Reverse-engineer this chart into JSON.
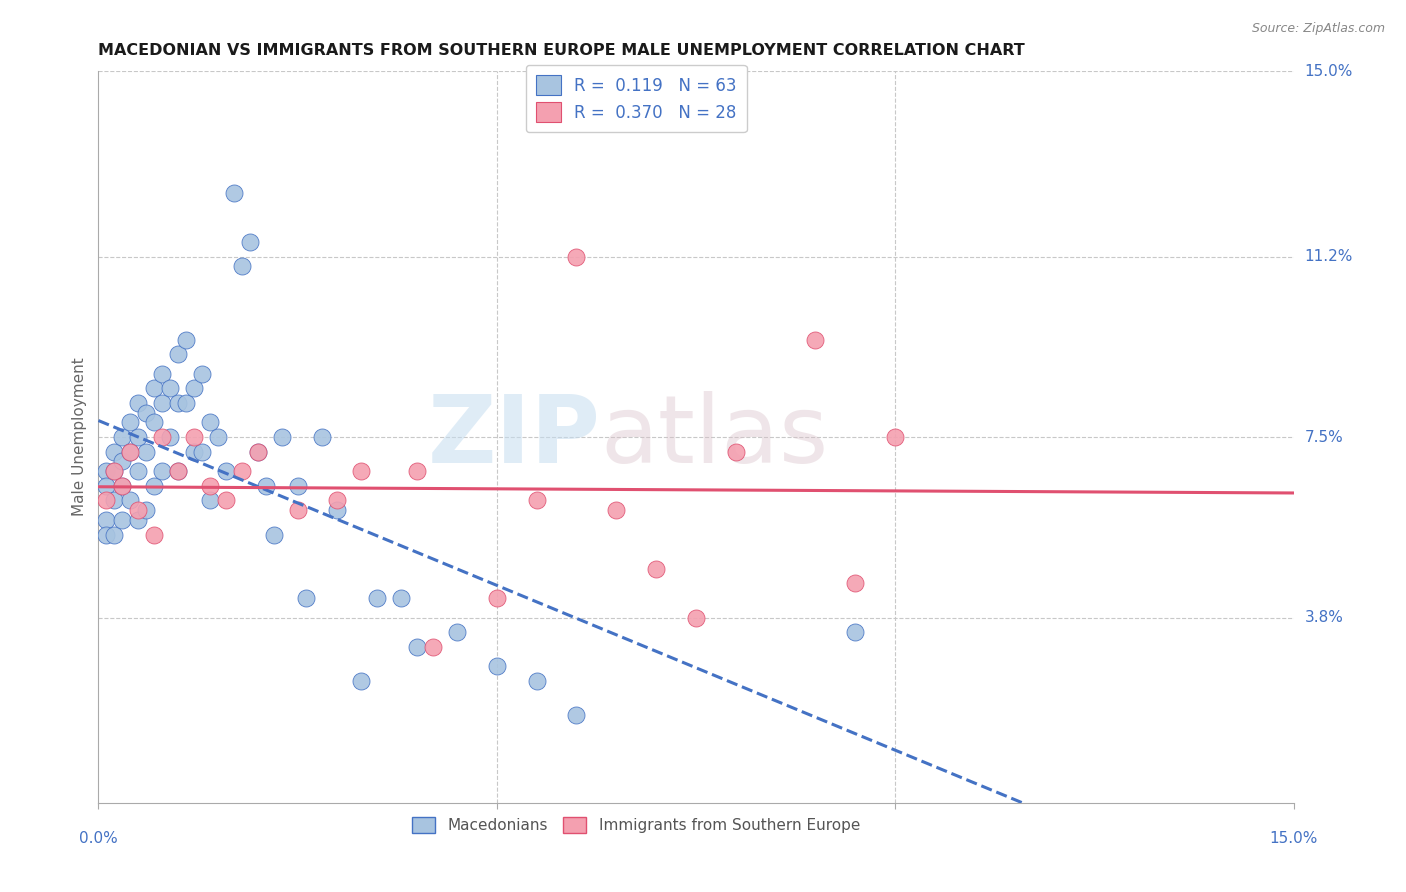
{
  "title": "MACEDONIAN VS IMMIGRANTS FROM SOUTHERN EUROPE MALE UNEMPLOYMENT CORRELATION CHART",
  "source": "Source: ZipAtlas.com",
  "ylabel": "Male Unemployment",
  "ytick_labels": [
    "15.0%",
    "11.2%",
    "7.5%",
    "3.8%"
  ],
  "ytick_values": [
    0.15,
    0.112,
    0.075,
    0.038
  ],
  "R_mac": 0.119,
  "N_mac": 63,
  "R_imm": 0.37,
  "N_imm": 28,
  "xmin": 0.0,
  "xmax": 0.15,
  "ymin": 0.0,
  "ymax": 0.15,
  "mac_color": "#a8c4e0",
  "imm_color": "#f4a0b0",
  "mac_line_color": "#4472c4",
  "imm_line_color": "#e05070",
  "grid_color": "#c8c8c8",
  "title_color": "#1a1a1a",
  "axis_label_color": "#4472c4",
  "mac_x": [
    0.001,
    0.001,
    0.001,
    0.001,
    0.002,
    0.002,
    0.002,
    0.002,
    0.003,
    0.003,
    0.003,
    0.003,
    0.004,
    0.004,
    0.004,
    0.005,
    0.005,
    0.005,
    0.005,
    0.006,
    0.006,
    0.006,
    0.007,
    0.007,
    0.007,
    0.008,
    0.008,
    0.008,
    0.009,
    0.009,
    0.01,
    0.01,
    0.01,
    0.011,
    0.011,
    0.012,
    0.012,
    0.013,
    0.013,
    0.014,
    0.014,
    0.015,
    0.016,
    0.017,
    0.018,
    0.019,
    0.02,
    0.021,
    0.022,
    0.023,
    0.025,
    0.026,
    0.028,
    0.03,
    0.033,
    0.035,
    0.038,
    0.04,
    0.045,
    0.05,
    0.055,
    0.06,
    0.095
  ],
  "mac_y": [
    0.068,
    0.065,
    0.058,
    0.055,
    0.072,
    0.068,
    0.062,
    0.055,
    0.075,
    0.07,
    0.065,
    0.058,
    0.078,
    0.072,
    0.062,
    0.082,
    0.075,
    0.068,
    0.058,
    0.08,
    0.072,
    0.06,
    0.085,
    0.078,
    0.065,
    0.088,
    0.082,
    0.068,
    0.085,
    0.075,
    0.092,
    0.082,
    0.068,
    0.095,
    0.082,
    0.085,
    0.072,
    0.088,
    0.072,
    0.078,
    0.062,
    0.075,
    0.068,
    0.125,
    0.11,
    0.115,
    0.072,
    0.065,
    0.055,
    0.075,
    0.065,
    0.042,
    0.075,
    0.06,
    0.025,
    0.042,
    0.042,
    0.032,
    0.035,
    0.028,
    0.025,
    0.018,
    0.035
  ],
  "imm_x": [
    0.001,
    0.002,
    0.003,
    0.004,
    0.005,
    0.007,
    0.008,
    0.01,
    0.012,
    0.014,
    0.016,
    0.018,
    0.02,
    0.025,
    0.03,
    0.033,
    0.04,
    0.042,
    0.05,
    0.055,
    0.06,
    0.065,
    0.07,
    0.075,
    0.08,
    0.09,
    0.095,
    0.1
  ],
  "imm_y": [
    0.062,
    0.068,
    0.065,
    0.072,
    0.06,
    0.055,
    0.075,
    0.068,
    0.075,
    0.065,
    0.062,
    0.068,
    0.072,
    0.06,
    0.062,
    0.068,
    0.068,
    0.032,
    0.042,
    0.062,
    0.112,
    0.06,
    0.048,
    0.038,
    0.072,
    0.095,
    0.045,
    0.075
  ]
}
